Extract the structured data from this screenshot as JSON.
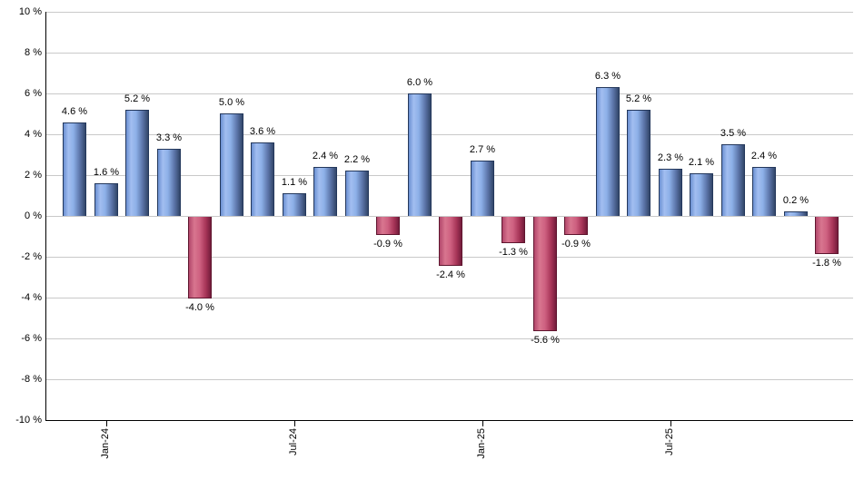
{
  "chart_data": {
    "type": "bar",
    "title": "",
    "xlabel": "",
    "ylabel": "",
    "ylim": [
      -10,
      10
    ],
    "grid": true,
    "legend": false,
    "y_tick_labels": [
      "10 %",
      "8 %",
      "6 %",
      "4 %",
      "2 %",
      "0 %",
      "-2 %",
      "-4 %",
      "-6 %",
      "-8 %",
      "-10 %"
    ],
    "x_ticks": [
      {
        "label": "Jan-24",
        "bar_index": 1
      },
      {
        "label": "Jul-24",
        "bar_index": 7
      },
      {
        "label": "Jan-25",
        "bar_index": 13
      },
      {
        "label": "Jul-25",
        "bar_index": 19
      }
    ],
    "bars": [
      {
        "value": 4.6,
        "label": "4.6 %"
      },
      {
        "value": 1.6,
        "label": "1.6 %"
      },
      {
        "value": 5.2,
        "label": "5.2 %"
      },
      {
        "value": 3.3,
        "label": "3.3 %"
      },
      {
        "value": -4.0,
        "label": "-4.0 %"
      },
      {
        "value": 5.0,
        "label": "5.0 %"
      },
      {
        "value": 3.6,
        "label": "3.6 %"
      },
      {
        "value": 1.1,
        "label": "1.1 %"
      },
      {
        "value": 2.4,
        "label": "2.4 %"
      },
      {
        "value": 2.2,
        "label": "2.2 %"
      },
      {
        "value": -0.9,
        "label": "-0.9 %"
      },
      {
        "value": 6.0,
        "label": "6.0 %"
      },
      {
        "value": -2.4,
        "label": "-2.4 %"
      },
      {
        "value": 2.7,
        "label": "2.7 %"
      },
      {
        "value": -1.3,
        "label": "-1.3 %"
      },
      {
        "value": -5.6,
        "label": "-5.6 %"
      },
      {
        "value": -0.9,
        "label": "-0.9 %"
      },
      {
        "value": 6.3,
        "label": "6.3 %"
      },
      {
        "value": 5.2,
        "label": "5.2 %"
      },
      {
        "value": 2.3,
        "label": "2.3 %"
      },
      {
        "value": 2.1,
        "label": "2.1 %"
      },
      {
        "value": 3.5,
        "label": "3.5 %"
      },
      {
        "value": 2.4,
        "label": "2.4 %"
      },
      {
        "value": 0.2,
        "label": "0.2 %"
      },
      {
        "value": -1.8,
        "label": "-1.8 %"
      }
    ],
    "colors": {
      "positive_bar": "#87a9e2",
      "negative_bar": "#c5537a",
      "gridline": "#c9c9c9",
      "axis": "#000000",
      "label_text": "#000000"
    }
  }
}
